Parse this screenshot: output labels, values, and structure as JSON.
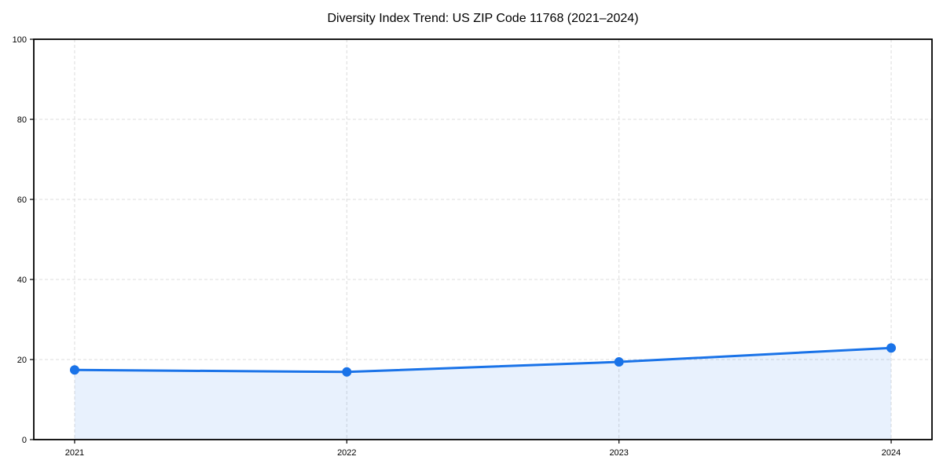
{
  "chart_data": {
    "type": "area",
    "title": "Diversity Index Trend: US ZIP Code 11768 (2021–2024)",
    "categories": [
      "2021",
      "2022",
      "2023",
      "2024"
    ],
    "x": [
      2021,
      2022,
      2023,
      2024
    ],
    "series": [
      {
        "name": "Diversity Index",
        "values": [
          17.4,
          16.9,
          19.4,
          22.9
        ]
      }
    ],
    "xlabel": "",
    "ylabel": "",
    "ylim": [
      0,
      100
    ],
    "yticks": [
      0,
      20,
      40,
      60,
      80,
      100
    ],
    "x_margin_frac": 0.05,
    "grid": true,
    "grid_style": "dashed",
    "legend_position": "none",
    "colors": {
      "line": "#1a73e8",
      "marker": "#1a73e8",
      "fill": "rgba(26,115,232,0.10)",
      "grid": "#dcdcdc",
      "spine": "#000000",
      "text": "#000000",
      "background": "#ffffff"
    }
  }
}
